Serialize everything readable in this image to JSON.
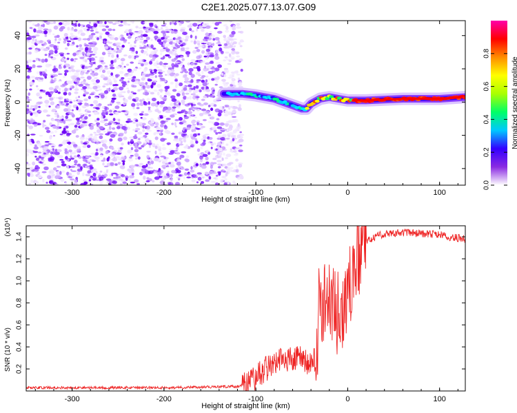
{
  "title": "C2E1.2025.077.13.07.G09",
  "chart_data": [
    {
      "type": "heatmap",
      "xlabel": "Height of straight line (km)",
      "ylabel": "Frequency (Hz)",
      "xlim": [
        -350,
        128
      ],
      "ylim": [
        -50,
        49
      ],
      "x_ticks": [
        -300,
        -200,
        -100,
        0,
        100
      ],
      "y_ticks": [
        -40,
        -20,
        0,
        20,
        40
      ],
      "colorbar": {
        "label": "Normalized spectral amplitude",
        "range": [
          0,
          1
        ],
        "ticks": [
          "0.0",
          "0.2",
          "0.4",
          "0.6",
          "0.8"
        ],
        "colors": [
          "#ffffff",
          "#8a2be2",
          "#3300ff",
          "#00c8ff",
          "#00ff66",
          "#aaff00",
          "#ffff00",
          "#ff8c00",
          "#ff0000",
          "#ff00aa"
        ]
      },
      "noise_region_x": [
        -350,
        -115
      ],
      "signal_ridge": {
        "x": [
          -135,
          -115,
          -100,
          -90,
          -80,
          -70,
          -60,
          -50,
          -45,
          -40,
          -30,
          -20,
          -10,
          0,
          20,
          60,
          100,
          128
        ],
        "frequency": [
          5,
          5,
          4,
          3,
          2,
          0,
          -2,
          -4,
          -4,
          -1,
          2,
          3,
          2,
          1,
          1,
          2,
          2,
          3
        ]
      }
    },
    {
      "type": "line",
      "xlabel": "Height of straight line (km)",
      "ylabel": "SNR (10 * v/v)",
      "y_multiplier": "(x10⁴)",
      "xlim": [
        -350,
        128
      ],
      "ylim": [
        0,
        1.5
      ],
      "x_ticks": [
        -300,
        -200,
        -100,
        0,
        100
      ],
      "y_ticks": [
        "0.2",
        "0.4",
        "0.6",
        "0.8",
        "1.0",
        "1.2",
        "1.4"
      ],
      "line_color": "#ee2222",
      "series": [
        {
          "x": [
            -350,
            -200,
            -120,
            -110,
            -100,
            -90,
            -80,
            -70,
            -60,
            -50,
            -40,
            -35,
            -30,
            -25,
            -20,
            -15,
            -10,
            -5,
            0,
            5,
            10,
            15,
            20,
            30,
            40,
            60,
            80,
            100,
            110,
            128
          ],
          "y": [
            0.03,
            0.03,
            0.04,
            0.06,
            0.12,
            0.2,
            0.25,
            0.3,
            0.28,
            0.3,
            0.22,
            0.3,
            0.75,
            0.7,
            0.8,
            0.75,
            0.6,
            0.8,
            0.95,
            1.05,
            1.2,
            1.3,
            1.35,
            1.4,
            1.43,
            1.44,
            1.43,
            1.42,
            1.4,
            1.38
          ]
        }
      ]
    }
  ]
}
